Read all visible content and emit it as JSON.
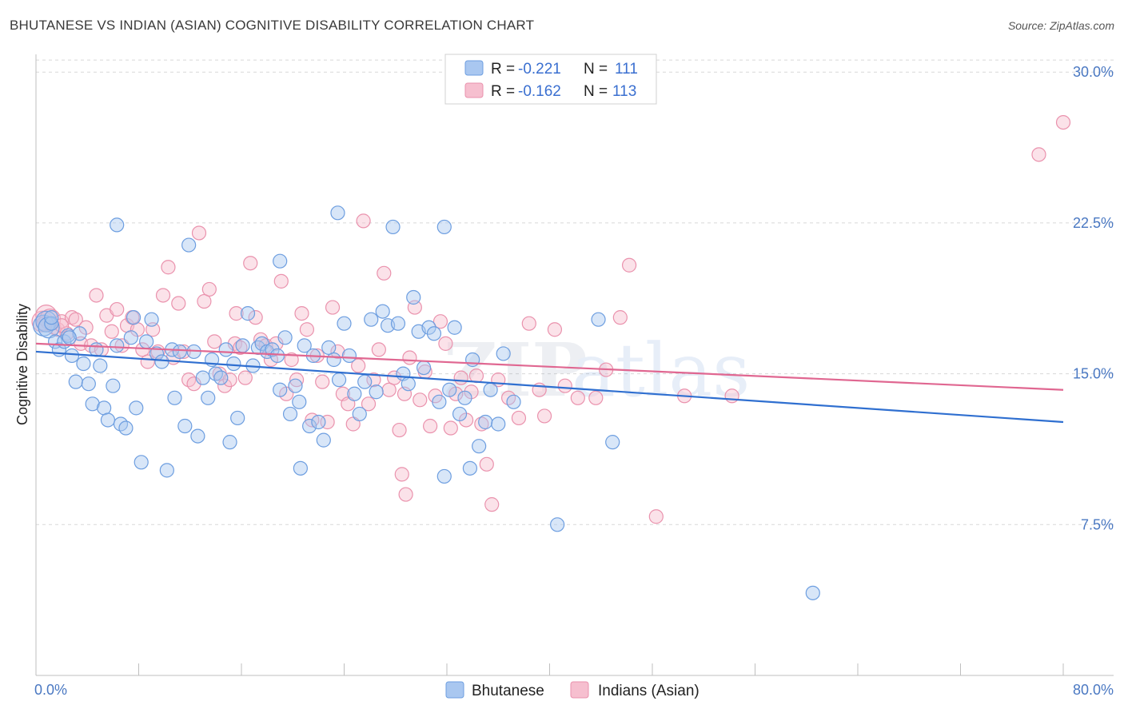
{
  "title": "BHUTANESE VS INDIAN (ASIAN) COGNITIVE DISABILITY CORRELATION CHART",
  "source": "Source: ZipAtlas.com",
  "colors": {
    "blue_fill": "#a9c7f0",
    "blue_stroke": "#6d9ee0",
    "blue_line": "#2f6fd0",
    "pink_fill": "#f6bfcf",
    "pink_stroke": "#ea92ad",
    "pink_line": "#e06791",
    "grid": "#d8d8d8",
    "tick_text": "#4a78c2"
  },
  "legend": {
    "rows": [
      {
        "r_label": "R =",
        "r_value": "-0.221",
        "n_label": "N =",
        "n_value": "111"
      },
      {
        "r_label": "R =",
        "r_value": "-0.162",
        "n_label": "N =",
        "n_value": "113"
      }
    ]
  },
  "watermark": {
    "zip": "ZIP",
    "atlas": "atlas"
  },
  "chart_data": {
    "type": "scatter",
    "title": "BHUTANESE VS INDIAN (ASIAN) COGNITIVE DISABILITY CORRELATION CHART",
    "xlabel": "",
    "ylabel": "Cognitive Disability",
    "xlim": [
      0,
      80
    ],
    "ylim": [
      0,
      31.2
    ],
    "x_tick_labels": [
      "0.0%",
      "80.0%"
    ],
    "y_ticks": [
      7.5,
      15.0,
      22.5,
      30.0
    ],
    "y_tick_labels": [
      "7.5%",
      "15.0%",
      "22.5%",
      "30.0%"
    ],
    "grid": "horizontal dashed",
    "legend_position": "top-center",
    "series": [
      {
        "name": "Bhutanese",
        "R": -0.221,
        "N": 111,
        "trend": {
          "x": [
            0,
            80
          ],
          "y": [
            16.1,
            12.6
          ]
        },
        "points": [
          [
            0.6,
            17.4
          ],
          [
            0.8,
            17.6
          ],
          [
            1.0,
            17.3
          ],
          [
            1.2,
            17.5
          ],
          [
            1.5,
            16.6
          ],
          [
            1.8,
            16.2
          ],
          [
            2.2,
            16.6
          ],
          [
            2.5,
            16.9
          ],
          [
            2.8,
            15.9
          ],
          [
            3.1,
            14.6
          ],
          [
            3.4,
            17.0
          ],
          [
            3.7,
            15.5
          ],
          [
            4.1,
            14.5
          ],
          [
            4.4,
            13.5
          ],
          [
            4.7,
            16.2
          ],
          [
            5.0,
            15.4
          ],
          [
            5.3,
            13.3
          ],
          [
            5.6,
            12.7
          ],
          [
            6.0,
            14.4
          ],
          [
            6.3,
            16.4
          ],
          [
            6.6,
            12.5
          ],
          [
            7.0,
            12.3
          ],
          [
            7.4,
            16.8
          ],
          [
            7.8,
            13.3
          ],
          [
            8.2,
            10.6
          ],
          [
            8.6,
            16.6
          ],
          [
            9.0,
            17.7
          ],
          [
            9.4,
            16.0
          ],
          [
            9.8,
            15.6
          ],
          [
            10.2,
            10.2
          ],
          [
            10.6,
            16.2
          ],
          [
            10.8,
            13.8
          ],
          [
            11.2,
            16.1
          ],
          [
            11.6,
            12.4
          ],
          [
            11.9,
            21.4
          ],
          [
            12.3,
            16.1
          ],
          [
            12.6,
            11.9
          ],
          [
            13.0,
            14.8
          ],
          [
            13.4,
            13.8
          ],
          [
            13.7,
            15.7
          ],
          [
            14.0,
            15.0
          ],
          [
            14.4,
            14.8
          ],
          [
            14.8,
            16.2
          ],
          [
            15.1,
            11.6
          ],
          [
            15.4,
            15.5
          ],
          [
            15.7,
            12.8
          ],
          [
            16.1,
            16.4
          ],
          [
            16.5,
            18.0
          ],
          [
            16.9,
            15.4
          ],
          [
            17.3,
            16.3
          ],
          [
            17.6,
            16.5
          ],
          [
            18.0,
            16.1
          ],
          [
            18.4,
            16.2
          ],
          [
            18.8,
            15.9
          ],
          [
            19.0,
            14.2
          ],
          [
            19.4,
            16.8
          ],
          [
            19.8,
            13.0
          ],
          [
            20.2,
            14.4
          ],
          [
            20.5,
            13.6
          ],
          [
            20.9,
            16.4
          ],
          [
            21.3,
            12.4
          ],
          [
            21.6,
            15.9
          ],
          [
            22.0,
            12.6
          ],
          [
            22.4,
            11.7
          ],
          [
            22.8,
            16.3
          ],
          [
            23.2,
            15.7
          ],
          [
            23.6,
            14.7
          ],
          [
            24.0,
            17.5
          ],
          [
            24.4,
            15.9
          ],
          [
            24.8,
            14.0
          ],
          [
            25.2,
            13.0
          ],
          [
            25.6,
            14.6
          ],
          [
            26.1,
            17.7
          ],
          [
            26.5,
            14.1
          ],
          [
            27.0,
            18.1
          ],
          [
            27.4,
            17.4
          ],
          [
            27.8,
            22.3
          ],
          [
            28.2,
            17.5
          ],
          [
            28.6,
            15.0
          ],
          [
            29.0,
            14.5
          ],
          [
            29.4,
            18.8
          ],
          [
            29.8,
            17.1
          ],
          [
            30.2,
            15.3
          ],
          [
            30.6,
            17.3
          ],
          [
            31.0,
            17.0
          ],
          [
            31.4,
            13.6
          ],
          [
            31.8,
            9.9
          ],
          [
            32.2,
            14.2
          ],
          [
            32.6,
            17.3
          ],
          [
            33.0,
            13.0
          ],
          [
            33.4,
            13.8
          ],
          [
            33.8,
            10.3
          ],
          [
            34.0,
            15.7
          ],
          [
            34.5,
            11.4
          ],
          [
            35.0,
            12.6
          ],
          [
            35.4,
            14.2
          ],
          [
            36.0,
            12.5
          ],
          [
            36.4,
            16.0
          ],
          [
            37.2,
            13.6
          ],
          [
            1.2,
            17.8
          ],
          [
            2.6,
            16.8
          ],
          [
            7.6,
            17.8
          ],
          [
            20.6,
            10.3
          ],
          [
            43.8,
            17.7
          ],
          [
            40.6,
            7.5
          ],
          [
            44.9,
            11.6
          ],
          [
            60.5,
            4.1
          ],
          [
            6.3,
            22.4
          ],
          [
            23.5,
            23.0
          ],
          [
            31.8,
            22.3
          ],
          [
            19.0,
            20.6
          ]
        ]
      },
      {
        "name": "Indians (Asian)",
        "R": -0.162,
        "N": 113,
        "trend": {
          "x": [
            0,
            80
          ],
          "y": [
            16.5,
            14.2
          ]
        },
        "points": [
          [
            0.5,
            17.6
          ],
          [
            0.8,
            17.9
          ],
          [
            1.1,
            17.7
          ],
          [
            1.4,
            17.3
          ],
          [
            1.7,
            17.2
          ],
          [
            2.0,
            17.6
          ],
          [
            2.4,
            17.0
          ],
          [
            2.8,
            17.8
          ],
          [
            3.1,
            17.7
          ],
          [
            3.5,
            16.5
          ],
          [
            3.9,
            17.3
          ],
          [
            4.3,
            16.4
          ],
          [
            4.7,
            18.9
          ],
          [
            5.1,
            16.2
          ],
          [
            5.5,
            17.9
          ],
          [
            5.9,
            17.1
          ],
          [
            6.3,
            18.2
          ],
          [
            6.7,
            16.4
          ],
          [
            7.1,
            17.4
          ],
          [
            7.5,
            17.8
          ],
          [
            7.9,
            17.2
          ],
          [
            8.3,
            16.2
          ],
          [
            8.7,
            15.6
          ],
          [
            9.1,
            17.2
          ],
          [
            9.5,
            16.1
          ],
          [
            9.9,
            18.9
          ],
          [
            10.3,
            20.3
          ],
          [
            10.7,
            15.8
          ],
          [
            11.1,
            18.5
          ],
          [
            11.5,
            16.1
          ],
          [
            11.9,
            14.7
          ],
          [
            12.3,
            14.5
          ],
          [
            12.7,
            22.0
          ],
          [
            13.1,
            18.6
          ],
          [
            13.5,
            19.2
          ],
          [
            13.9,
            16.6
          ],
          [
            14.3,
            15.0
          ],
          [
            14.7,
            14.4
          ],
          [
            15.1,
            14.7
          ],
          [
            15.5,
            16.5
          ],
          [
            15.9,
            16.3
          ],
          [
            16.3,
            14.8
          ],
          [
            16.7,
            20.5
          ],
          [
            17.1,
            17.8
          ],
          [
            17.5,
            16.7
          ],
          [
            17.9,
            16.4
          ],
          [
            18.3,
            15.7
          ],
          [
            18.7,
            16.5
          ],
          [
            19.1,
            19.6
          ],
          [
            19.5,
            14.0
          ],
          [
            19.9,
            15.7
          ],
          [
            20.3,
            14.7
          ],
          [
            20.7,
            18.0
          ],
          [
            21.1,
            17.2
          ],
          [
            21.5,
            12.7
          ],
          [
            21.9,
            15.9
          ],
          [
            22.3,
            14.6
          ],
          [
            22.7,
            12.6
          ],
          [
            23.1,
            18.3
          ],
          [
            23.5,
            16.1
          ],
          [
            23.9,
            14.0
          ],
          [
            24.3,
            13.5
          ],
          [
            24.7,
            12.5
          ],
          [
            25.1,
            15.4
          ],
          [
            25.5,
            22.6
          ],
          [
            25.9,
            13.5
          ],
          [
            26.3,
            14.7
          ],
          [
            26.7,
            16.2
          ],
          [
            27.1,
            20.0
          ],
          [
            27.5,
            14.2
          ],
          [
            27.9,
            14.8
          ],
          [
            28.3,
            12.2
          ],
          [
            28.7,
            14.0
          ],
          [
            29.1,
            15.8
          ],
          [
            29.5,
            18.3
          ],
          [
            29.9,
            13.7
          ],
          [
            30.3,
            15.1
          ],
          [
            30.7,
            12.4
          ],
          [
            31.1,
            13.9
          ],
          [
            31.5,
            17.6
          ],
          [
            31.9,
            16.5
          ],
          [
            32.3,
            12.3
          ],
          [
            32.7,
            14.0
          ],
          [
            33.1,
            14.8
          ],
          [
            33.5,
            12.7
          ],
          [
            33.9,
            14.1
          ],
          [
            34.3,
            14.9
          ],
          [
            34.7,
            12.5
          ],
          [
            35.1,
            10.5
          ],
          [
            35.5,
            8.5
          ],
          [
            36.0,
            14.7
          ],
          [
            36.8,
            13.8
          ],
          [
            37.6,
            12.8
          ],
          [
            38.4,
            17.5
          ],
          [
            39.2,
            14.2
          ],
          [
            39.6,
            12.9
          ],
          [
            40.4,
            17.2
          ],
          [
            41.2,
            14.4
          ],
          [
            42.2,
            13.8
          ],
          [
            43.6,
            13.8
          ],
          [
            44.4,
            15.2
          ],
          [
            45.5,
            17.8
          ],
          [
            46.2,
            20.4
          ],
          [
            50.5,
            13.9
          ],
          [
            54.2,
            13.9
          ],
          [
            48.3,
            7.9
          ],
          [
            28.5,
            10.0
          ],
          [
            28.8,
            9.0
          ],
          [
            2.0,
            17.4
          ],
          [
            0.6,
            17.5
          ],
          [
            78.1,
            25.9
          ],
          [
            80.0,
            27.5
          ],
          [
            15.6,
            18.0
          ]
        ]
      }
    ]
  }
}
